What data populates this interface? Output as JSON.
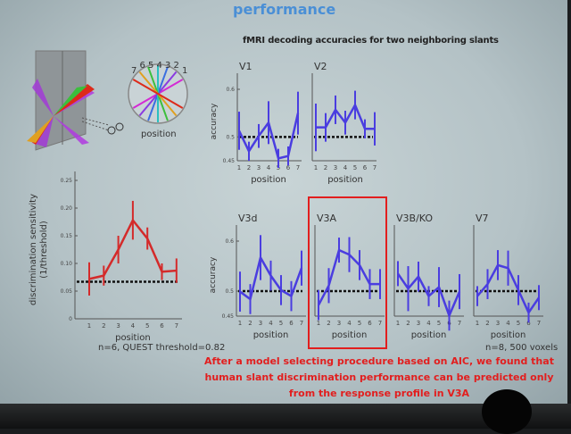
{
  "slide": {
    "title": "performance",
    "subtitle": "fMRI decoding accuracies for two neighboring slants",
    "illustration": {
      "numbers": [
        "7",
        "6",
        "5",
        "4",
        "3",
        "2",
        "1"
      ],
      "label": "position"
    },
    "behavior_note": "n=6, QUEST threshold=0.82",
    "fmri_note": "n=8, 500 voxels",
    "conclusion": [
      "After a model selecting procedure based on AIC,  we found that",
      "human slant discrimination performance can be predicted only",
      "from the response profile in V3A"
    ],
    "colors": {
      "title": "#4a8fd6",
      "behavior": "#d42a2a",
      "fmri": "#4a3de0",
      "highlight": "#e21e1e"
    }
  },
  "chart_data": [
    {
      "type": "line",
      "name": "behavior",
      "ylabel": "discrimination sensitivity",
      "ylabel2": "(1/threshold)",
      "xlabel": "position",
      "x": [
        1,
        2,
        3,
        4,
        5,
        6,
        7
      ],
      "values": [
        0.072,
        0.078,
        0.125,
        0.178,
        0.145,
        0.085,
        0.087
      ],
      "error": [
        0.03,
        0.018,
        0.025,
        0.035,
        0.02,
        0.015,
        0.022
      ],
      "ylim": [
        0,
        0.25
      ],
      "yticks": [
        "0",
        "0.05",
        "0.10",
        "0.15",
        "0.20",
        "0.25"
      ],
      "baseline": 0.067
    },
    {
      "type": "line",
      "name": "V1",
      "title": "V1",
      "ylabel": "accuracy",
      "xlabel": "position",
      "x": [
        1,
        2,
        3,
        4,
        5,
        6,
        7
      ],
      "values": [
        0.513,
        0.47,
        0.502,
        0.53,
        0.455,
        0.46,
        0.55
      ],
      "error": [
        0.04,
        0.02,
        0.025,
        0.045,
        0.02,
        0.02,
        0.045
      ],
      "ylim": [
        0.45,
        0.6
      ],
      "yticks": [
        "0.45",
        "0.5",
        "0.6"
      ],
      "baseline": 0.5
    },
    {
      "type": "line",
      "name": "V2",
      "title": "V2",
      "xlabel": "position",
      "x": [
        1,
        2,
        3,
        4,
        5,
        6,
        7
      ],
      "values": [
        0.52,
        0.52,
        0.557,
        0.53,
        0.567,
        0.517,
        0.517
      ],
      "error": [
        0.05,
        0.03,
        0.03,
        0.025,
        0.03,
        0.02,
        0.035
      ],
      "ylim": [
        0.45,
        0.6
      ],
      "baseline": 0.5
    },
    {
      "type": "line",
      "name": "V3d",
      "title": "V3d",
      "ylabel": "accuracy",
      "xlabel": "position",
      "x": [
        1,
        2,
        3,
        4,
        5,
        6,
        7
      ],
      "values": [
        0.499,
        0.484,
        0.567,
        0.531,
        0.502,
        0.49,
        0.546
      ],
      "error": [
        0.04,
        0.03,
        0.045,
        0.03,
        0.03,
        0.03,
        0.035
      ],
      "ylim": [
        0.45,
        0.6
      ],
      "yticks": [
        "0.45",
        "0.5",
        "0.6"
      ],
      "baseline": 0.5
    },
    {
      "type": "line",
      "name": "V3A",
      "title": "V3A",
      "xlabel": "position",
      "x": [
        1,
        2,
        3,
        4,
        5,
        6,
        7
      ],
      "values": [
        0.472,
        0.511,
        0.582,
        0.573,
        0.552,
        0.514,
        0.514
      ],
      "error": [
        0.03,
        0.035,
        0.025,
        0.035,
        0.03,
        0.03,
        0.03
      ],
      "ylim": [
        0.45,
        0.6
      ],
      "baseline": 0.5
    },
    {
      "type": "line",
      "name": "V3B/KO",
      "title": "V3B/KO",
      "xlabel": "position",
      "x": [
        1,
        2,
        3,
        4,
        5,
        6,
        7
      ],
      "values": [
        0.535,
        0.505,
        0.529,
        0.49,
        0.508,
        0.451,
        0.499
      ],
      "error": [
        0.025,
        0.045,
        0.03,
        0.02,
        0.04,
        0.03,
        0.035
      ],
      "ylim": [
        0.45,
        0.6
      ],
      "baseline": 0.5
    },
    {
      "type": "line",
      "name": "V7",
      "title": "V7",
      "xlabel": "position",
      "x": [
        1,
        2,
        3,
        4,
        5,
        6,
        7
      ],
      "values": [
        0.49,
        0.514,
        0.552,
        0.546,
        0.502,
        0.457,
        0.487
      ],
      "error": [
        0.02,
        0.03,
        0.03,
        0.035,
        0.03,
        0.02,
        0.025
      ],
      "ylim": [
        0.45,
        0.6
      ],
      "baseline": 0.5
    }
  ]
}
